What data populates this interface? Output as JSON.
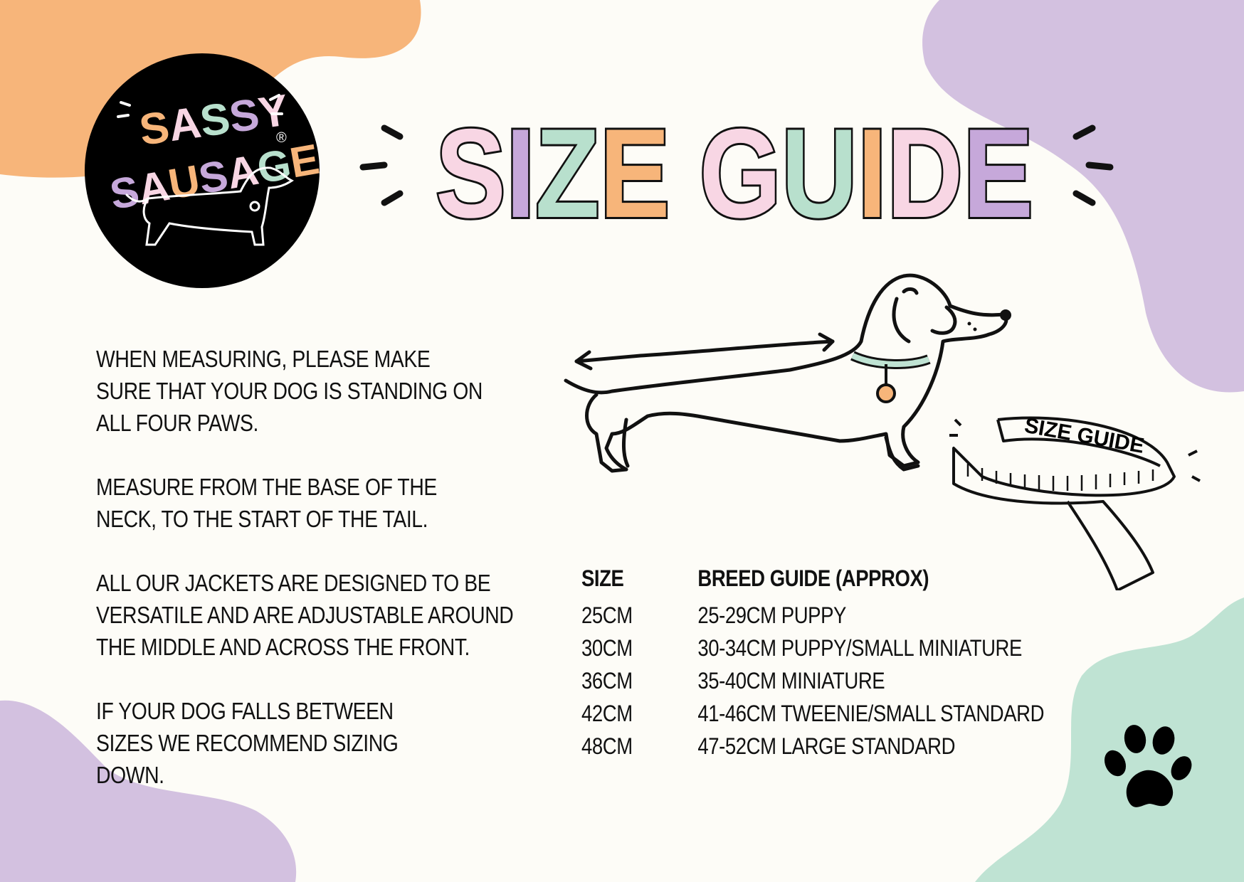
{
  "brand": {
    "logo_text_line1": "SASSY",
    "logo_text_line2": "SAUSAGE",
    "registered": "®"
  },
  "title": {
    "text": "SIZE GUIDE",
    "letters": [
      "S",
      "I",
      "Z",
      "E",
      " ",
      "G",
      "U",
      "I",
      "D",
      "E"
    ]
  },
  "instructions": [
    "WHEN MEASURING, PLEASE MAKE SURE THAT YOUR DOG IS STANDING ON ALL FOUR PAWS.",
    "MEASURE FROM THE BASE OF THE NECK, TO THE START OF THE TAIL.",
    "ALL OUR JACKETS ARE DESIGNED TO BE VERSATILE AND ARE ADJUSTABLE AROUND THE MIDDLE AND ACROSS THE FRONT.",
    "IF YOUR DOG FALLS BETWEEN SIZES WE RECOMMEND SIZING DOWN."
  ],
  "tape_label": "SIZE GUIDE",
  "size_table": {
    "headers": [
      "SIZE",
      "BREED GUIDE (APPROX)"
    ],
    "rows": [
      [
        "25CM",
        "25-29CM PUPPY"
      ],
      [
        "30CM",
        "30-34CM PUPPY/SMALL MINIATURE"
      ],
      [
        "36CM",
        "35-40CM MINIATURE"
      ],
      [
        "42CM",
        "41-46CM TWEENIE/SMALL STANDARD"
      ],
      [
        "48CM",
        "47-52CM LARGE STANDARD"
      ]
    ]
  },
  "icons": [
    "paw-print-icon",
    "dachshund-illustration",
    "tape-measure-icon"
  ],
  "colors": {
    "orange": "#f7b57a",
    "purple": "#d3c1e0",
    "green": "#bfe3d3",
    "pink": "#f8d6e4",
    "lilac_text": "#c6a8da",
    "mint_text": "#b8e0cd",
    "background": "#fdfcf7"
  }
}
